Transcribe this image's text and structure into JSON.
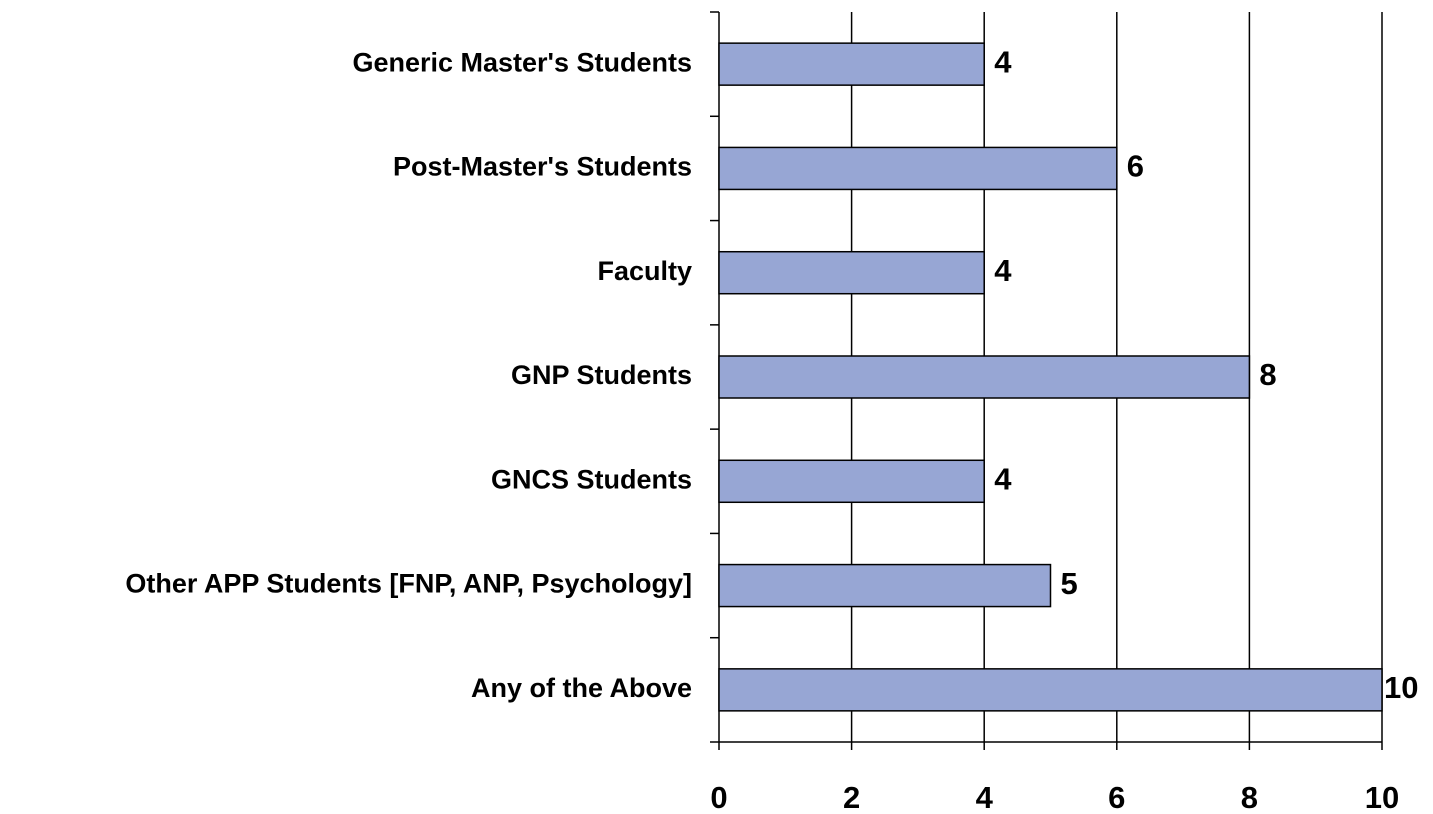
{
  "chart_data": {
    "type": "bar",
    "orientation": "horizontal",
    "categories": [
      "Generic Master's Students",
      "Post-Master's Students",
      "Faculty",
      "GNP Students",
      "GNCS Students",
      "Other APP Students [FNP, ANP, Psychology]",
      "Any of the Above"
    ],
    "values": [
      4,
      6,
      4,
      8,
      4,
      5,
      10
    ],
    "color": "#97a6d4",
    "xlim": [
      0,
      10
    ],
    "xticks": [
      0,
      2,
      4,
      6,
      8,
      10
    ],
    "grid": true
  }
}
